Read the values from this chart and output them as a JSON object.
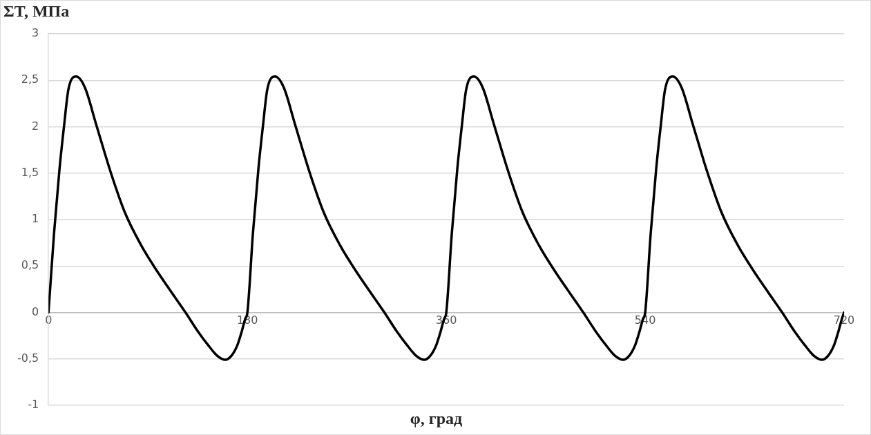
{
  "chart_data": {
    "type": "line",
    "xlabel": "φ, град",
    "ylabel": "ΣT, МПа",
    "xlim": [
      0,
      720
    ],
    "xticks": [
      0,
      180,
      360,
      540,
      720
    ],
    "ylim": [
      -1,
      3
    ],
    "yticks": [
      -1,
      {
        "value": -0.5,
        "label": "-0,5"
      },
      0,
      {
        "value": 0.5,
        "label": "0,5"
      },
      1,
      {
        "value": 1.5,
        "label": "1,5"
      },
      2,
      {
        "value": 2.5,
        "label": "2,5"
      },
      3
    ],
    "grid": "y",
    "legend": false,
    "marker": "none",
    "line_style": "solid",
    "series": [
      {
        "color": "#000000",
        "x": [
          0,
          5,
          10,
          14,
          18,
          25,
          33,
          43,
          56,
          69,
          84,
          98,
          110,
          124,
          135,
          145,
          153,
          160,
          166,
          171,
          175,
          178,
          180,
          185,
          190,
          194,
          198,
          205,
          213,
          223,
          236,
          249,
          264,
          278,
          290,
          304,
          315,
          325,
          333,
          340,
          346,
          351,
          355,
          358,
          360,
          365,
          370,
          374,
          378,
          385,
          393,
          403,
          416,
          429,
          444,
          458,
          470,
          484,
          495,
          505,
          513,
          520,
          526,
          531,
          535,
          538,
          540,
          545,
          550,
          554,
          558,
          565,
          573,
          583,
          596,
          609,
          624,
          638,
          650,
          664,
          675,
          685,
          693,
          700,
          706,
          711,
          715,
          718,
          720
        ],
        "values": [
          0,
          0.85,
          1.55,
          2,
          2.4,
          2.54,
          2.42,
          2.03,
          1.52,
          1.08,
          0.72,
          0.45,
          0.24,
          0,
          -0.2,
          -0.36,
          -0.47,
          -0.51,
          -0.46,
          -0.35,
          -0.2,
          -0.07,
          0,
          0.85,
          1.55,
          2,
          2.4,
          2.54,
          2.42,
          2.03,
          1.52,
          1.08,
          0.72,
          0.45,
          0.24,
          0,
          -0.2,
          -0.36,
          -0.47,
          -0.51,
          -0.46,
          -0.35,
          -0.2,
          -0.07,
          0,
          0.85,
          1.55,
          2,
          2.4,
          2.54,
          2.42,
          2.03,
          1.52,
          1.08,
          0.72,
          0.45,
          0.24,
          0,
          -0.2,
          -0.36,
          -0.47,
          -0.51,
          -0.46,
          -0.35,
          -0.2,
          -0.07,
          0,
          0.85,
          1.55,
          2,
          2.4,
          2.54,
          2.42,
          2.03,
          1.52,
          1.08,
          0.72,
          0.45,
          0.24,
          0,
          -0.2,
          -0.36,
          -0.47,
          -0.51,
          -0.46,
          -0.35,
          -0.2,
          -0.07,
          0
        ]
      }
    ]
  }
}
